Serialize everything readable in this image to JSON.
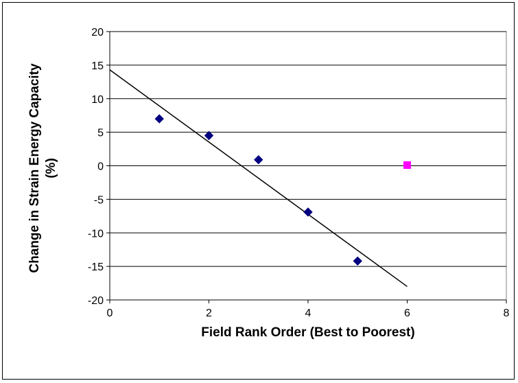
{
  "chart_data": {
    "type": "scatter",
    "title": "",
    "xlabel": "Field Rank Order (Best to Poorest)",
    "ylabel_line1": "Change in Strain Energy Capacity",
    "ylabel_line2": "(%)",
    "xlim": [
      0,
      8
    ],
    "ylim": [
      -20,
      20
    ],
    "x_ticks": [
      "0",
      "2",
      "4",
      "6",
      "8"
    ],
    "y_ticks": [
      "20",
      "15",
      "10",
      "5",
      "0",
      "-5",
      "-10",
      "-15",
      "-20"
    ],
    "grid": "horizontal",
    "legend": "none",
    "series": [
      {
        "marker": "diamond",
        "color": "#000080",
        "points": [
          {
            "x": 1,
            "y": 7.0
          },
          {
            "x": 2,
            "y": 4.5
          },
          {
            "x": 3,
            "y": 0.9
          },
          {
            "x": 4,
            "y": -6.9
          },
          {
            "x": 5,
            "y": -14.2
          }
        ]
      },
      {
        "marker": "square",
        "color": "#ff00ff",
        "points": [
          {
            "x": 6,
            "y": 0.1
          }
        ]
      }
    ],
    "trendline": {
      "type": "linear",
      "color": "#000000",
      "x_start": 0,
      "y_start": 14.3,
      "x_end": 6,
      "y_end": -18.0
    }
  }
}
